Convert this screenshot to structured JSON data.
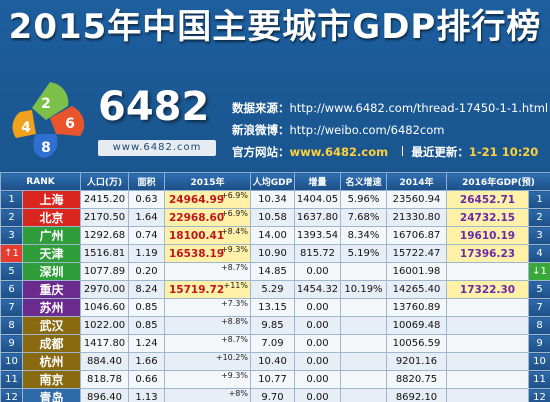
{
  "title": "2015年中国主要城市GDP排行榜",
  "logo": {
    "numbers": [
      "2",
      "4",
      "6",
      "8"
    ],
    "brand": "6482",
    "url": "www.6482.com"
  },
  "info": {
    "source_label": "数据来源：",
    "source_value": "http://www.6482.com/thread-17450-1-1.html",
    "weibo_label": "新浪微博：",
    "weibo_value": "http://weibo.com/6482com",
    "site_label": "官方网站：",
    "site_value": "www.6482.com",
    "update_label": "最近更新：",
    "update_value": "1-21 10:20"
  },
  "headers": [
    "RANK",
    "",
    "人口(万)",
    "面积",
    "2015年",
    "人均GDP",
    "增量",
    "名义增速",
    "2014年",
    "2016年GDP(预)",
    ""
  ],
  "rows": [
    {
      "rank": "1",
      "city": "上海",
      "pop": "2415.20",
      "area": "0.63",
      "g15": "24964.99",
      "g15_growth": "+6.9%",
      "per": "10.34",
      "inc": "1404.05",
      "nom": "5.96%",
      "g14": "23560.94",
      "g16": "26452.71",
      "rank2": "1",
      "color": "#d9271f",
      "r1": "",
      "r2": ""
    },
    {
      "rank": "2",
      "city": "北京",
      "pop": "2170.50",
      "area": "1.64",
      "g15": "22968.60",
      "g15_growth": "+6.9%",
      "per": "10.58",
      "inc": "1637.80",
      "nom": "7.68%",
      "g14": "21330.80",
      "g16": "24732.15",
      "rank2": "2",
      "color": "#d9271f",
      "r1": "",
      "r2": ""
    },
    {
      "rank": "3",
      "city": "广州",
      "pop": "1292.68",
      "area": "0.74",
      "g15": "18100.41",
      "g15_growth": "+8.4%",
      "per": "14.00",
      "inc": "1393.54",
      "nom": "8.34%",
      "g14": "16706.87",
      "g16": "19610.19",
      "rank2": "3",
      "color": "#2f9e3a",
      "r1": "",
      "r2": ""
    },
    {
      "rank": "↑1",
      "city": "天津",
      "pop": "1516.81",
      "area": "1.19",
      "g15": "16538.19",
      "g15_growth": "+9.3%",
      "per": "10.90",
      "inc": "815.72",
      "nom": "5.19%",
      "g14": "15722.47",
      "g16": "17396.23",
      "rank2": "4",
      "color": "#2f9e3a",
      "r1": "up",
      "r2": ""
    },
    {
      "rank": "5",
      "city": "深圳",
      "pop": "1077.89",
      "area": "0.20",
      "g15": "",
      "g15_growth": "+8.7%",
      "per": "14.85",
      "inc": "0.00",
      "nom": "",
      "g14": "16001.98",
      "g16": "",
      "rank2": "↓1",
      "color": "#2f9e3a",
      "r1": "",
      "r2": "down"
    },
    {
      "rank": "6",
      "city": "重庆",
      "pop": "2970.00",
      "area": "8.24",
      "g15": "15719.72",
      "g15_growth": "+11%",
      "per": "5.29",
      "inc": "1454.32",
      "nom": "10.19%",
      "g14": "14265.40",
      "g16": "17322.30",
      "rank2": "5",
      "color": "#6a2a8e",
      "r1": "",
      "r2": ""
    },
    {
      "rank": "7",
      "city": "苏州",
      "pop": "1046.60",
      "area": "0.85",
      "g15": "",
      "g15_growth": "+7.3%",
      "per": "13.15",
      "inc": "0.00",
      "nom": "",
      "g14": "13760.89",
      "g16": "",
      "rank2": "7",
      "color": "#6a2a8e",
      "r1": "",
      "r2": ""
    },
    {
      "rank": "8",
      "city": "武汉",
      "pop": "1022.00",
      "area": "0.85",
      "g15": "",
      "g15_growth": "+8.8%",
      "per": "9.85",
      "inc": "0.00",
      "nom": "",
      "g14": "10069.48",
      "g16": "",
      "rank2": "8",
      "color": "#8a6a10",
      "r1": "",
      "r2": ""
    },
    {
      "rank": "9",
      "city": "成都",
      "pop": "1417.80",
      "area": "1.24",
      "g15": "",
      "g15_growth": "+8.7%",
      "per": "7.09",
      "inc": "0.00",
      "nom": "",
      "g14": "10056.59",
      "g16": "",
      "rank2": "9",
      "color": "#8a6a10",
      "r1": "",
      "r2": ""
    },
    {
      "rank": "10",
      "city": "杭州",
      "pop": "884.40",
      "area": "1.66",
      "g15": "",
      "g15_growth": "+10.2%",
      "per": "10.40",
      "inc": "0.00",
      "nom": "",
      "g14": "9201.16",
      "g16": "",
      "rank2": "10",
      "color": "#8a6a10",
      "r1": "",
      "r2": ""
    },
    {
      "rank": "11",
      "city": "南京",
      "pop": "818.78",
      "area": "0.66",
      "g15": "",
      "g15_growth": "+9.3%",
      "per": "10.77",
      "inc": "0.00",
      "nom": "",
      "g14": "8820.75",
      "g16": "",
      "rank2": "11",
      "color": "#8a6a10",
      "r1": "",
      "r2": ""
    },
    {
      "rank": "12",
      "city": "青岛",
      "pop": "896.40",
      "area": "1.13",
      "g15": "",
      "g15_growth": "+8%",
      "per": "9.70",
      "inc": "0.00",
      "nom": "",
      "g14": "8692.10",
      "g16": "",
      "rank2": "12",
      "color": "#2e69a8",
      "r1": "",
      "r2": ""
    }
  ]
}
